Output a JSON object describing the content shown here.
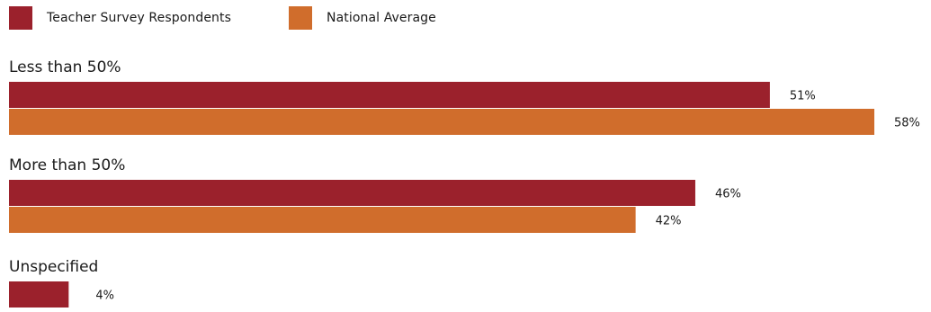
{
  "chart_data": {
    "type": "bar",
    "orientation": "horizontal",
    "categories": [
      "Less than 50%",
      "More than 50%",
      "Unspecified"
    ],
    "series": [
      {
        "name": "Teacher Survey Respondents",
        "color": "#9b212c",
        "values": [
          51,
          46,
          4
        ],
        "labels": [
          "51%",
          "46%",
          "4%"
        ]
      },
      {
        "name": "National Average",
        "color": "#d06d2c",
        "values": [
          58,
          42,
          null
        ],
        "labels": [
          "58%",
          "42%",
          ""
        ]
      }
    ],
    "xlim": [
      0,
      58
    ],
    "legend_position": "top-left",
    "grid": false
  }
}
